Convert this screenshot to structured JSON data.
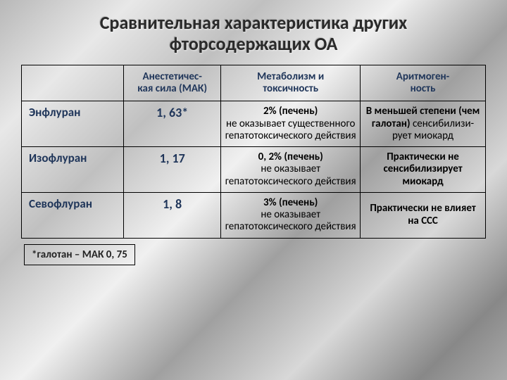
{
  "title_line1": "Сравнительная характеристика других",
  "title_line2": "фторсодержащих ОА",
  "table": {
    "columns": [
      "",
      "Анестетичес-\nкая сила (МАК)",
      "Метаболизм и\nтоксичность",
      "Аритмоген-\nность"
    ],
    "col_widths_pct": [
      22,
      21,
      30,
      27
    ],
    "header_color": "#20365a",
    "border_color": "#000000",
    "rows": [
      {
        "name": "Энфлуран",
        "mac": "1, 63*",
        "metabolism_bold": "2% (печень)",
        "metabolism_rest": "не оказывает существенного гепатотоксического действия",
        "arr_bold": "В меньшей степени (чем галотан)",
        "arr_rest": " сенсибилизи-\nрует миокард"
      },
      {
        "name": "Изофлуран",
        "mac": "1, 17",
        "metabolism_bold": "0, 2% (печень)",
        "metabolism_rest": "не оказывает гепатотоксического действия",
        "arr_bold": "Практически не сенсибилизирует миокард",
        "arr_rest": ""
      },
      {
        "name": "Севофлуран",
        "mac": "1, 8",
        "metabolism_bold": "3% (печень)",
        "metabolism_rest": "не оказывает гепатотоксического действия",
        "arr_bold": "Практически не влияет на ССС",
        "arr_rest": ""
      }
    ]
  },
  "footnote": "*галотан – МАК 0, 75",
  "colors": {
    "heading": "#20365a",
    "text": "#000000",
    "title": "#2a2a2a"
  },
  "fonts": {
    "title_size_pt": 20,
    "header_size_pt": 12,
    "cell_size_pt": 11,
    "rowname_size_pt": 13
  }
}
